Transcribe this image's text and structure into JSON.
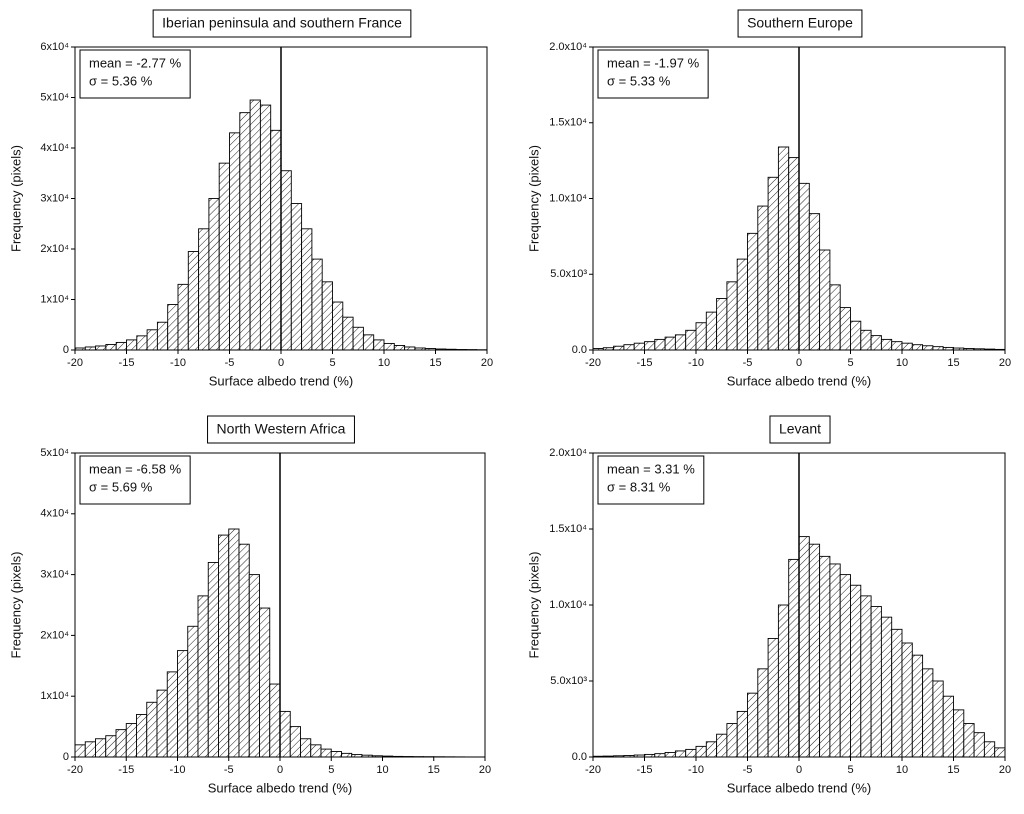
{
  "chart_data": [
    {
      "type": "histogram",
      "title": "Iberian peninsula and southern France",
      "annotations": [
        "mean = -2.77 %",
        "σ = 5.36 %"
      ],
      "x_label": "Surface albedo trend (%)",
      "y_label": "Frequency (pixels)",
      "bins": [
        -20,
        -19,
        -18,
        -17,
        -16,
        -15,
        -14,
        -13,
        -12,
        -11,
        -10,
        -9,
        -8,
        -7,
        -6,
        -5,
        -4,
        -3,
        -2,
        -1,
        0,
        1,
        2,
        3,
        4,
        5,
        6,
        7,
        8,
        9,
        10,
        11,
        12,
        13,
        14,
        15,
        16,
        17,
        18,
        19,
        20
      ],
      "values": [
        400,
        600,
        800,
        1100,
        1500,
        2000,
        2800,
        4000,
        5500,
        9000,
        13000,
        19500,
        24000,
        30000,
        37000,
        43000,
        47000,
        49500,
        48500,
        43500,
        35500,
        29000,
        24000,
        18000,
        13500,
        9500,
        6500,
        4500,
        3000,
        2000,
        1300,
        900,
        600,
        400,
        300,
        200,
        150,
        100,
        80,
        50
      ],
      "color": "#000000",
      "vline": 0,
      "xlim": [
        -20,
        20
      ],
      "xticks": [
        -20,
        -15,
        -10,
        -5,
        0,
        5,
        10,
        15,
        20
      ],
      "ylim": [
        0,
        60000
      ],
      "yticks": [
        0,
        {
          "value": 10000,
          "label": "1x10⁴"
        },
        {
          "value": 20000,
          "label": "2x10⁴"
        },
        {
          "value": 30000,
          "label": "3x10⁴"
        },
        {
          "value": 40000,
          "label": "4x10⁴"
        },
        {
          "value": 50000,
          "label": "5x10⁴"
        },
        {
          "value": 60000,
          "label": "6x10⁴"
        }
      ]
    },
    {
      "type": "histogram",
      "title": "Southern Europe",
      "annotations": [
        "mean = -1.97 %",
        "σ = 5.33 %"
      ],
      "x_label": "Surface albedo trend (%)",
      "y_label": "Frequency (pixels)",
      "bins": [
        -20,
        -19,
        -18,
        -17,
        -16,
        -15,
        -14,
        -13,
        -12,
        -11,
        -10,
        -9,
        -8,
        -7,
        -6,
        -5,
        -4,
        -3,
        -2,
        -1,
        0,
        1,
        2,
        3,
        4,
        5,
        6,
        7,
        8,
        9,
        10,
        11,
        12,
        13,
        14,
        15,
        16,
        17,
        18,
        19,
        20
      ],
      "values": [
        100,
        150,
        250,
        350,
        450,
        550,
        700,
        850,
        1000,
        1300,
        1800,
        2500,
        3400,
        4500,
        6000,
        7700,
        9500,
        11400,
        13400,
        12700,
        11000,
        9000,
        6600,
        4300,
        2800,
        1900,
        1300,
        950,
        700,
        550,
        450,
        350,
        280,
        220,
        170,
        130,
        100,
        80,
        60,
        40
      ],
      "color": "#000000",
      "vline": 0,
      "xlim": [
        -20,
        20
      ],
      "xticks": [
        -20,
        -15,
        -10,
        -5,
        0,
        5,
        10,
        15,
        20
      ],
      "ylim": [
        0,
        20000
      ],
      "yticks": [
        {
          "value": 0,
          "label": "0.0"
        },
        {
          "value": 5000,
          "label": "5.0x10³"
        },
        {
          "value": 10000,
          "label": "1.0x10⁴"
        },
        {
          "value": 15000,
          "label": "1.5x10⁴"
        },
        {
          "value": 20000,
          "label": "2.0x10⁴"
        }
      ]
    },
    {
      "type": "histogram",
      "title": "North Western Africa",
      "annotations": [
        "mean = -6.58 %",
        "σ = 5.69 %"
      ],
      "x_label": "Surface albedo trend (%)",
      "y_label": "Frequency (pixels)",
      "bins": [
        -20,
        -19,
        -18,
        -17,
        -16,
        -15,
        -14,
        -13,
        -12,
        -11,
        -10,
        -9,
        -8,
        -7,
        -6,
        -5,
        -4,
        -3,
        -2,
        -1,
        0,
        1,
        2,
        3,
        4,
        5,
        6,
        7,
        8,
        9,
        10,
        11,
        12,
        13,
        14,
        15,
        16,
        17,
        18,
        19,
        20
      ],
      "values": [
        2000,
        2500,
        3000,
        3500,
        4500,
        5500,
        7000,
        9000,
        11000,
        14000,
        17500,
        21500,
        26500,
        32000,
        36500,
        37500,
        35000,
        30000,
        24500,
        12000,
        7500,
        5000,
        3000,
        2000,
        1300,
        900,
        600,
        400,
        300,
        200,
        150,
        100,
        80,
        60,
        50,
        40,
        30,
        20,
        10,
        10
      ],
      "color": "#000000",
      "vline": 0,
      "xlim": [
        -20,
        20
      ],
      "xticks": [
        -20,
        -15,
        -10,
        -5,
        0,
        5,
        10,
        15,
        20
      ],
      "ylim": [
        0,
        50000
      ],
      "yticks": [
        0,
        {
          "value": 10000,
          "label": "1x10⁴"
        },
        {
          "value": 20000,
          "label": "2x10⁴"
        },
        {
          "value": 30000,
          "label": "3x10⁴"
        },
        {
          "value": 40000,
          "label": "4x10⁴"
        },
        {
          "value": 50000,
          "label": "5x10⁴"
        }
      ]
    },
    {
      "type": "histogram",
      "title": "Levant",
      "annotations": [
        "mean = 3.31 %",
        "σ = 8.31 %"
      ],
      "x_label": "Surface albedo trend (%)",
      "y_label": "Frequency (pixels)",
      "bins": [
        -20,
        -19,
        -18,
        -17,
        -16,
        -15,
        -14,
        -13,
        -12,
        -11,
        -10,
        -9,
        -8,
        -7,
        -6,
        -5,
        -4,
        -3,
        -2,
        -1,
        0,
        1,
        2,
        3,
        4,
        5,
        6,
        7,
        8,
        9,
        10,
        11,
        12,
        13,
        14,
        15,
        16,
        17,
        18,
        19,
        20
      ],
      "values": [
        50,
        60,
        80,
        100,
        130,
        170,
        220,
        300,
        400,
        500,
        700,
        1000,
        1500,
        2200,
        3000,
        4200,
        5800,
        7800,
        10000,
        13000,
        14500,
        14000,
        13200,
        12700,
        12000,
        11300,
        10600,
        9900,
        9200,
        8400,
        7500,
        6700,
        5800,
        5000,
        4000,
        3100,
        2200,
        1600,
        1000,
        600
      ],
      "color": "#000000",
      "vline": 0,
      "xlim": [
        -20,
        20
      ],
      "xticks": [
        -20,
        -15,
        -10,
        -5,
        0,
        5,
        10,
        15,
        20
      ],
      "ylim": [
        0,
        20000
      ],
      "yticks": [
        {
          "value": 0,
          "label": "0.0"
        },
        {
          "value": 5000,
          "label": "5.0x10³"
        },
        {
          "value": 10000,
          "label": "1.0x10⁴"
        },
        {
          "value": 15000,
          "label": "1.5x10⁴"
        },
        {
          "value": 20000,
          "label": "2.0x10⁴"
        }
      ]
    }
  ]
}
